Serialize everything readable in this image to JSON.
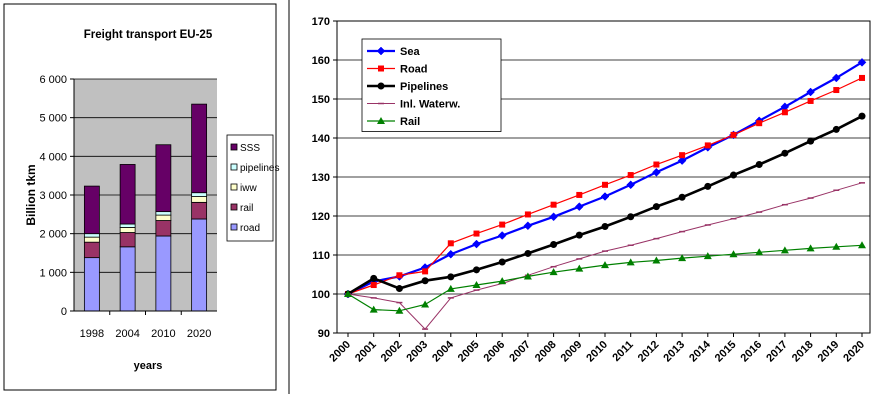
{
  "chart_data": [
    {
      "type": "bar",
      "stacked": true,
      "title": "Freight transport  EU-25",
      "xlabel": "years",
      "ylabel": "Billion tkm",
      "ylim": [
        0,
        6000
      ],
      "yticks": [
        "0",
        "1 000",
        "2 000",
        "3 000",
        "4 000",
        "5 000",
        "6 000"
      ],
      "grid": true,
      "legend_position": "right",
      "categories": [
        "1998",
        "2004",
        "2010",
        "2020"
      ],
      "series": [
        {
          "name": "road",
          "color": "#9999ff",
          "values": [
            1380,
            1660,
            1940,
            2380
          ]
        },
        {
          "name": "rail",
          "color": "#993366",
          "values": [
            400,
            370,
            400,
            430
          ]
        },
        {
          "name": "iww",
          "color": "#ffffcc",
          "values": [
            130,
            130,
            140,
            150
          ]
        },
        {
          "name": "pipelines",
          "color": "#ccffff",
          "values": [
            90,
            90,
            90,
            100
          ]
        },
        {
          "name": "SSS",
          "color": "#660066",
          "values": [
            1230,
            1540,
            1730,
            2290
          ]
        }
      ]
    },
    {
      "type": "line",
      "ylim": [
        90,
        170
      ],
      "yticks": [
        90,
        100,
        110,
        120,
        130,
        140,
        150,
        160,
        170
      ],
      "grid": true,
      "legend_position": "top-left",
      "x": [
        "2000",
        "2001",
        "2002",
        "2003",
        "2004",
        "2005",
        "2006",
        "2007",
        "2008",
        "2009",
        "2010",
        "2011",
        "2012",
        "2013",
        "2014",
        "2015",
        "2016",
        "2017",
        "2018",
        "2019",
        "2020"
      ],
      "series": [
        {
          "name": "Sea",
          "color": "#0000ff",
          "marker": "diamond",
          "values": [
            100,
            103.2,
            104.5,
            106.8,
            110.2,
            112.8,
            115,
            117.5,
            119.8,
            122.4,
            125,
            128,
            131.2,
            134.2,
            137.6,
            140.8,
            144.4,
            148,
            151.8,
            155.4,
            159.4
          ]
        },
        {
          "name": "Road",
          "color": "#ff0000",
          "marker": "square",
          "values": [
            100,
            102.3,
            104.8,
            105.8,
            113,
            115.5,
            117.8,
            120.4,
            122.9,
            125.4,
            128,
            130.5,
            133.2,
            135.6,
            138.1,
            140.8,
            143.8,
            146.6,
            149.5,
            152.3,
            155.4
          ]
        },
        {
          "name": "Pipelines",
          "color": "#000000",
          "marker": "circle",
          "values": [
            100,
            104,
            101.4,
            103.4,
            104.4,
            106.2,
            108.2,
            110.4,
            112.7,
            115.1,
            117.3,
            119.8,
            122.4,
            124.8,
            127.6,
            130.5,
            133.2,
            136.1,
            139.2,
            142.2,
            145.6
          ]
        },
        {
          "name": "Inl. Waterw.",
          "color": "#993366",
          "marker": "dash",
          "values": [
            100,
            99,
            97.8,
            91,
            99,
            101,
            102.7,
            104.8,
            107,
            109,
            111,
            112.5,
            114.2,
            116,
            117.7,
            119.3,
            121,
            122.9,
            124.6,
            126.6,
            128.5
          ]
        },
        {
          "name": "Rail",
          "color": "#008000",
          "marker": "triangle",
          "values": [
            100,
            96,
            95.7,
            97.3,
            101.3,
            102.3,
            103.3,
            104.5,
            105.6,
            106.5,
            107.4,
            108.1,
            108.6,
            109.2,
            109.7,
            110.2,
            110.7,
            111.2,
            111.7,
            112.1,
            112.5
          ]
        }
      ]
    }
  ]
}
